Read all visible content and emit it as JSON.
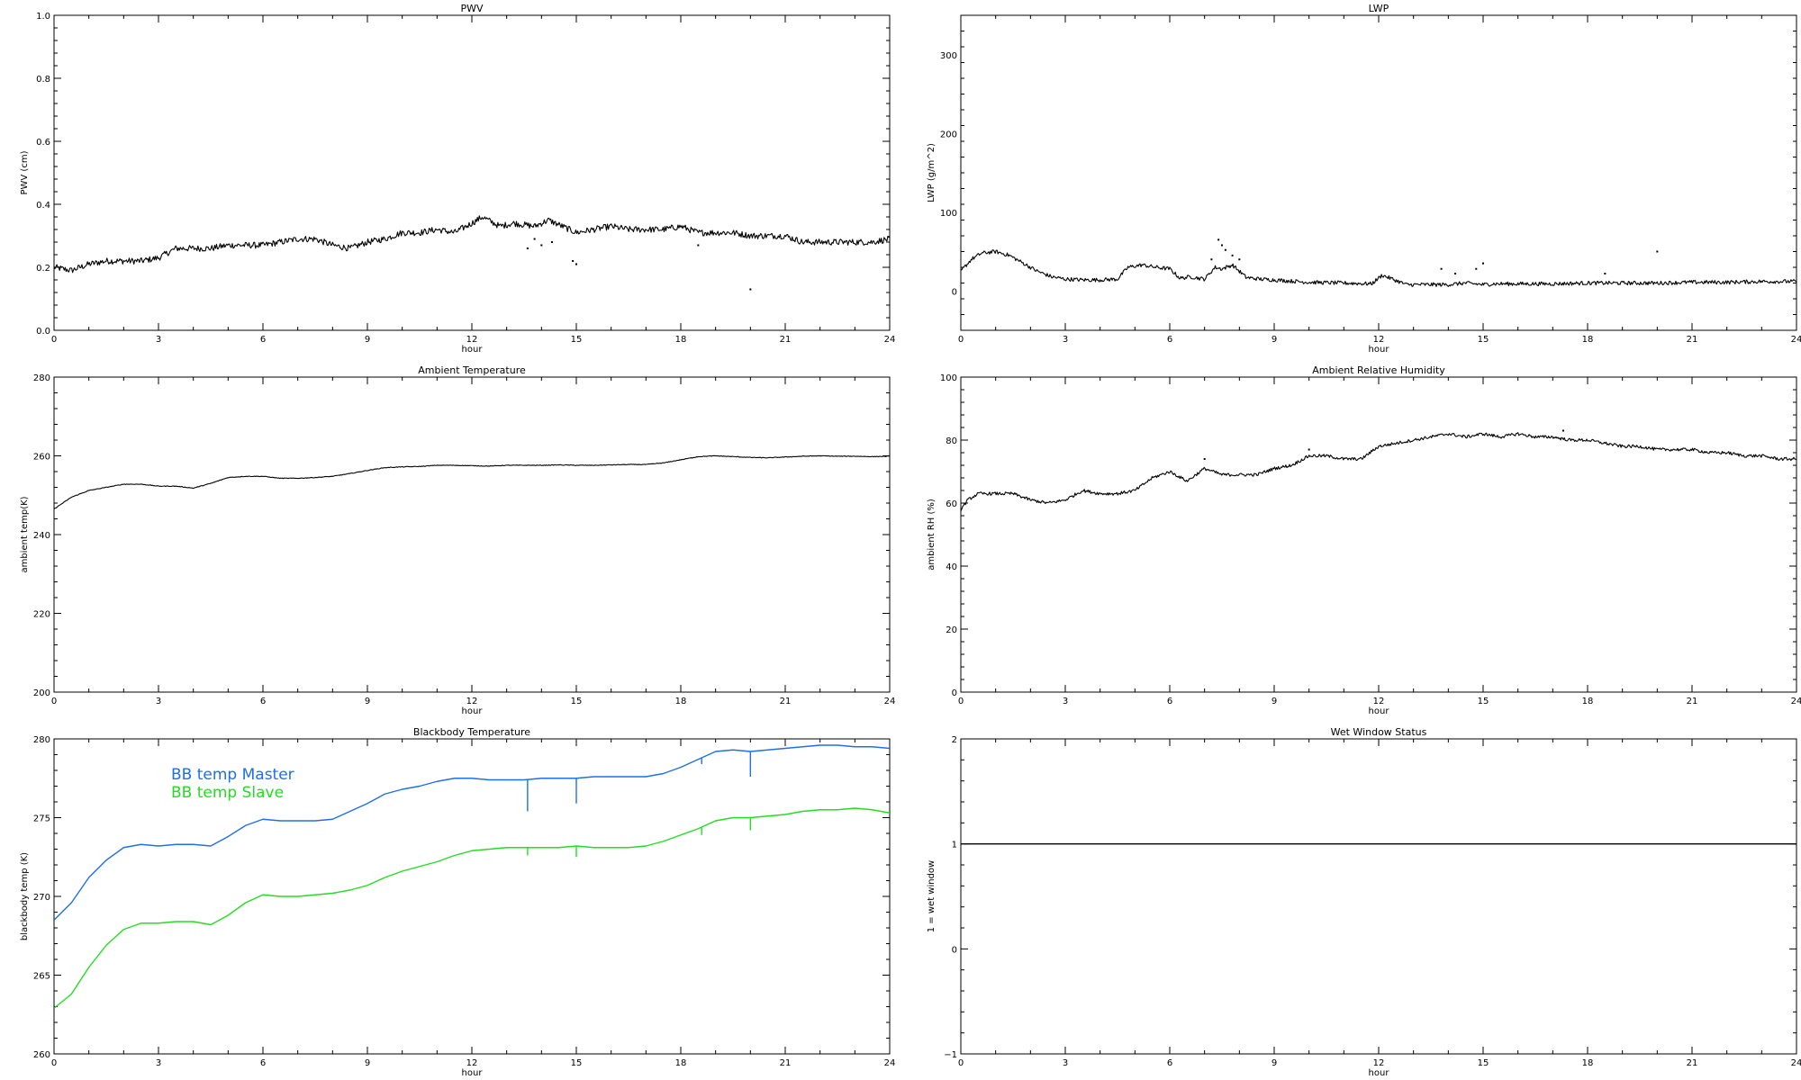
{
  "chart_data": [
    {
      "type": "line",
      "title": "PWV",
      "xlabel": "hour",
      "ylabel": "PWV (cm)",
      "xlim": [
        0,
        24
      ],
      "ylim": [
        0.0,
        1.0
      ],
      "xticks": [
        0,
        3,
        6,
        9,
        12,
        15,
        18,
        21,
        24
      ],
      "yticks": [
        "0.0",
        "0.2",
        "0.4",
        "0.6",
        "0.8",
        "1.0"
      ],
      "grid": false,
      "series": [
        {
          "color": "#000000",
          "noise": 0.01,
          "x": [
            0,
            0.5,
            1,
            1.5,
            2,
            2.5,
            3,
            3.5,
            4,
            4.5,
            5,
            5.5,
            6,
            6.5,
            7,
            7.5,
            8,
            8.5,
            9,
            9.5,
            10,
            10.5,
            11,
            11.5,
            12,
            12.3,
            12.8,
            13.2,
            13.8,
            14.2,
            14.6,
            15,
            15.5,
            16,
            16.5,
            17,
            17.5,
            18,
            18.5,
            19,
            19.5,
            20,
            20.5,
            21,
            21.5,
            22,
            22.5,
            23,
            23.5,
            24
          ],
          "values": [
            0.2,
            0.19,
            0.21,
            0.22,
            0.22,
            0.22,
            0.23,
            0.26,
            0.26,
            0.26,
            0.27,
            0.27,
            0.27,
            0.28,
            0.29,
            0.29,
            0.27,
            0.26,
            0.28,
            0.29,
            0.31,
            0.31,
            0.32,
            0.31,
            0.34,
            0.36,
            0.33,
            0.34,
            0.33,
            0.35,
            0.33,
            0.31,
            0.32,
            0.33,
            0.32,
            0.32,
            0.32,
            0.33,
            0.31,
            0.31,
            0.31,
            0.3,
            0.3,
            0.3,
            0.28,
            0.28,
            0.28,
            0.28,
            0.28,
            0.29
          ]
        }
      ],
      "outliers": [
        [
          13.6,
          0.26
        ],
        [
          14.0,
          0.27
        ],
        [
          14.3,
          0.28
        ],
        [
          14.9,
          0.22
        ],
        [
          15.0,
          0.21
        ],
        [
          20.0,
          0.13
        ],
        [
          13.8,
          0.29
        ],
        [
          18.5,
          0.27
        ]
      ]
    },
    {
      "type": "line",
      "title": "LWP",
      "xlabel": "hour",
      "ylabel": "LWP (g/m^2)",
      "xlim": [
        0,
        24
      ],
      "ylim": [
        -50,
        350
      ],
      "xticks": [
        0,
        3,
        6,
        9,
        12,
        15,
        18,
        21,
        24
      ],
      "yticks": [
        "0",
        "100",
        "200",
        "300"
      ],
      "grid": false,
      "series": [
        {
          "color": "#000000",
          "noise": 2.5,
          "x": [
            0,
            0.3,
            0.6,
            1,
            1.4,
            1.8,
            2.2,
            2.6,
            3,
            3.5,
            4,
            4.5,
            4.8,
            5.2,
            5.6,
            6,
            6.3,
            6.6,
            7,
            7.3,
            7.5,
            7.8,
            8.2,
            8.6,
            9,
            10,
            11,
            11.8,
            12.1,
            12.4,
            12.8,
            13.5,
            14,
            14.5,
            15,
            15.3,
            16,
            17,
            18,
            19,
            20,
            21,
            22,
            23,
            24
          ],
          "values": [
            25,
            40,
            48,
            50,
            45,
            35,
            25,
            18,
            15,
            14,
            14,
            15,
            30,
            33,
            30,
            28,
            16,
            18,
            15,
            30,
            28,
            33,
            17,
            15,
            14,
            11,
            10,
            9,
            20,
            15,
            8,
            8,
            8,
            10,
            8,
            9,
            9,
            9,
            10,
            10,
            10,
            11,
            11,
            12,
            12
          ]
        }
      ],
      "outliers": [
        [
          7.4,
          65
        ],
        [
          7.5,
          58
        ],
        [
          7.6,
          52
        ],
        [
          7.8,
          45
        ],
        [
          8.0,
          40
        ],
        [
          13.8,
          28
        ],
        [
          14.2,
          22
        ],
        [
          14.8,
          28
        ],
        [
          15.0,
          35
        ],
        [
          20.0,
          50
        ],
        [
          18.5,
          22
        ],
        [
          7.2,
          40
        ]
      ]
    },
    {
      "type": "line",
      "title": "Ambient Temperature",
      "xlabel": "hour",
      "ylabel": "ambient temp(K)",
      "xlim": [
        0,
        24
      ],
      "ylim": [
        200,
        280
      ],
      "xticks": [
        0,
        3,
        6,
        9,
        12,
        15,
        18,
        21,
        24
      ],
      "yticks": [
        "200",
        "220",
        "240",
        "260",
        "280"
      ],
      "grid": false,
      "series": [
        {
          "color": "#000000",
          "noise": 0.08,
          "x": [
            0,
            0.5,
            1,
            1.5,
            2,
            2.5,
            3,
            3.5,
            4,
            4.5,
            5,
            5.5,
            6,
            6.5,
            7,
            7.5,
            8,
            8.5,
            9,
            9.5,
            10,
            10.5,
            11,
            11.5,
            12,
            12.5,
            13,
            13.5,
            14,
            14.5,
            15,
            15.5,
            16,
            16.5,
            17,
            17.5,
            18,
            18.5,
            19,
            19.5,
            20,
            20.5,
            21,
            21.5,
            22,
            22.5,
            23,
            23.5,
            24
          ],
          "values": [
            246.5,
            249.5,
            251.2,
            252.0,
            252.8,
            252.8,
            252.3,
            252.3,
            251.8,
            253.0,
            254.5,
            254.8,
            254.8,
            254.3,
            254.3,
            254.5,
            254.8,
            255.5,
            256.3,
            257.0,
            257.2,
            257.3,
            257.6,
            257.6,
            257.5,
            257.4,
            257.6,
            257.6,
            257.6,
            257.7,
            257.6,
            257.6,
            257.7,
            257.8,
            257.8,
            258.2,
            259.0,
            259.8,
            260.0,
            259.8,
            259.6,
            259.5,
            259.7,
            259.9,
            260.0,
            259.9,
            259.9,
            259.8,
            259.9
          ]
        }
      ]
    },
    {
      "type": "line",
      "title": "Ambient Relative Humidity",
      "xlabel": "hour",
      "ylabel": "ambient RH (%)",
      "xlim": [
        0,
        24
      ],
      "ylim": [
        0,
        100
      ],
      "xticks": [
        0,
        3,
        6,
        9,
        12,
        15,
        18,
        21,
        24
      ],
      "yticks": [
        "0",
        "20",
        "40",
        "60",
        "80",
        "100"
      ],
      "grid": false,
      "series": [
        {
          "color": "#000000",
          "noise": 0.5,
          "x": [
            0,
            0.2,
            0.5,
            1,
            1.5,
            2,
            2.5,
            3,
            3.5,
            4,
            4.5,
            5,
            5.5,
            6,
            6.5,
            7,
            7.5,
            8,
            8.5,
            9,
            9.5,
            10,
            10.5,
            11,
            11.5,
            12,
            12.5,
            13,
            13.5,
            14,
            14.5,
            15,
            15.5,
            16,
            16.5,
            17,
            17.5,
            18,
            18.5,
            19,
            19.5,
            20,
            20.5,
            21,
            21.5,
            22,
            22.5,
            23,
            23.5,
            24
          ],
          "values": [
            58,
            61,
            63,
            63,
            63,
            61,
            60,
            61,
            64,
            63,
            63,
            64,
            68,
            70,
            67,
            71,
            69,
            69,
            69,
            71,
            72,
            75,
            75,
            74,
            74,
            78,
            79,
            80,
            81,
            82,
            81,
            82,
            81,
            82,
            81,
            81,
            80,
            80,
            79,
            78,
            78,
            77,
            77,
            77,
            76,
            76,
            75,
            75,
            74,
            74
          ]
        }
      ],
      "outliers": [
        [
          7.0,
          74
        ],
        [
          10.0,
          77
        ],
        [
          17.3,
          83
        ]
      ]
    },
    {
      "type": "line",
      "title": "Blackbody Temperature",
      "xlabel": "hour",
      "ylabel": "blackbody temp (K)",
      "xlim": [
        0,
        24
      ],
      "ylim": [
        260,
        280
      ],
      "xticks": [
        0,
        3,
        6,
        9,
        12,
        15,
        18,
        21,
        24
      ],
      "yticks": [
        "260",
        "265",
        "270",
        "275",
        "280"
      ],
      "grid": false,
      "legend": "inside top-left",
      "series": [
        {
          "name": "BB temp Master",
          "color": "#1f6fe8",
          "noise": 0.0,
          "x": [
            0,
            0.5,
            1,
            1.5,
            2,
            2.5,
            3,
            3.5,
            4,
            4.5,
            5,
            5.5,
            6,
            6.5,
            7,
            7.5,
            8,
            8.5,
            9,
            9.5,
            10,
            10.5,
            11,
            11.5,
            12,
            12.5,
            13,
            13.5,
            14,
            14.5,
            15,
            15.5,
            16,
            16.5,
            17,
            17.5,
            18,
            18.5,
            19,
            19.5,
            20,
            20.5,
            21,
            21.5,
            22,
            22.5,
            23,
            23.5,
            24
          ],
          "values": [
            268.5,
            269.6,
            271.2,
            272.3,
            273.1,
            273.3,
            273.2,
            273.3,
            273.3,
            273.2,
            273.8,
            274.5,
            274.9,
            274.8,
            274.8,
            274.8,
            274.9,
            275.4,
            275.9,
            276.5,
            276.8,
            277.0,
            277.3,
            277.5,
            277.5,
            277.4,
            277.4,
            277.4,
            277.5,
            277.5,
            277.5,
            277.6,
            277.6,
            277.6,
            277.6,
            277.8,
            278.2,
            278.7,
            279.2,
            279.3,
            279.2,
            279.3,
            279.4,
            279.5,
            279.6,
            279.6,
            279.5,
            279.5,
            279.4
          ]
        },
        {
          "name": "BB temp Slave",
          "color": "#22dd22",
          "noise": 0.0,
          "x": [
            0,
            0.5,
            1,
            1.5,
            2,
            2.5,
            3,
            3.5,
            4,
            4.5,
            5,
            5.5,
            6,
            6.5,
            7,
            7.5,
            8,
            8.5,
            9,
            9.5,
            10,
            10.5,
            11,
            11.5,
            12,
            12.5,
            13,
            13.5,
            14,
            14.5,
            15,
            15.5,
            16,
            16.5,
            17,
            17.5,
            18,
            18.5,
            19,
            19.5,
            20,
            20.5,
            21,
            21.5,
            22,
            22.5,
            23,
            23.5,
            24
          ],
          "values": [
            262.9,
            263.8,
            265.5,
            266.9,
            267.9,
            268.3,
            268.3,
            268.4,
            268.4,
            268.2,
            268.8,
            269.6,
            270.1,
            270.0,
            270.0,
            270.1,
            270.2,
            270.4,
            270.7,
            271.2,
            271.6,
            271.9,
            272.2,
            272.6,
            272.9,
            273.0,
            273.1,
            273.1,
            273.1,
            273.1,
            273.2,
            273.1,
            273.1,
            273.1,
            273.2,
            273.5,
            273.9,
            274.3,
            274.8,
            275.0,
            275.0,
            275.1,
            275.2,
            275.4,
            275.5,
            275.5,
            275.6,
            275.5,
            275.3
          ]
        }
      ],
      "spikes": [
        {
          "series": 0,
          "x": 13.6,
          "to": 275.4
        },
        {
          "series": 0,
          "x": 15.0,
          "to": 275.9
        },
        {
          "series": 0,
          "x": 18.6,
          "to": 278.4
        },
        {
          "series": 0,
          "x": 20.0,
          "to": 277.6
        },
        {
          "series": 1,
          "x": 13.6,
          "to": 272.6
        },
        {
          "series": 1,
          "x": 15.0,
          "to": 272.5
        },
        {
          "series": 1,
          "x": 18.6,
          "to": 273.9
        },
        {
          "series": 1,
          "x": 20.0,
          "to": 274.2
        }
      ]
    },
    {
      "type": "line",
      "title": "Wet Window Status",
      "xlabel": "hour",
      "ylabel": "1 = wet window",
      "xlim": [
        0,
        24
      ],
      "ylim": [
        -1,
        2
      ],
      "xticks": [
        0,
        3,
        6,
        9,
        12,
        15,
        18,
        21,
        24
      ],
      "yticks": [
        "−1",
        "0",
        "1",
        "2"
      ],
      "grid": false,
      "series": [
        {
          "color": "#000000",
          "noise": 0.0,
          "x": [
            0,
            24
          ],
          "values": [
            1,
            1
          ]
        }
      ]
    }
  ]
}
